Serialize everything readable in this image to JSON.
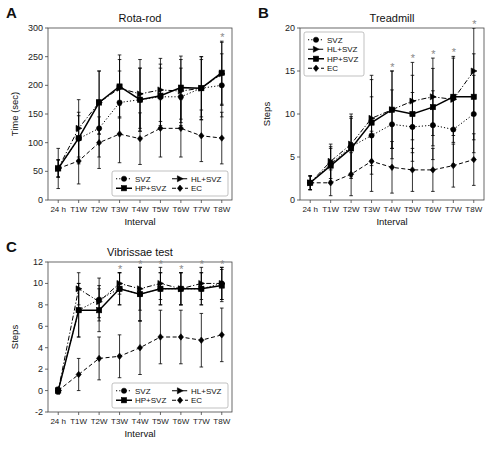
{
  "chart_data": [
    {
      "type": "line",
      "panel_label": "A",
      "title": "Rota-rod",
      "x_label": "Interval",
      "y_label": "Time (sec)",
      "categories": [
        "24 h",
        "T1W",
        "T2W",
        "T3W",
        "T4W",
        "T5W",
        "T6W",
        "T7W",
        "T8W"
      ],
      "series": [
        {
          "name": "SVZ",
          "color": "#000000",
          "marker": "circle",
          "line_style": "dotted",
          "values": [
            55,
            107,
            125,
            170,
            175,
            180,
            180,
            195,
            200
          ],
          "errors": [
            15,
            40,
            50,
            55,
            55,
            50,
            50,
            50,
            55
          ]
        },
        {
          "name": "HL+SVZ",
          "color": "#000000",
          "marker": "triangle-right",
          "line_style": "dashdot",
          "values": [
            55,
            125,
            170,
            195,
            185,
            192,
            190,
            195,
            220
          ],
          "errors": [
            15,
            50,
            55,
            50,
            60,
            55,
            55,
            55,
            55
          ]
        },
        {
          "name": "HP+SVZ",
          "color": "#000000",
          "marker": "square",
          "line_style": "solid",
          "values": [
            55,
            108,
            170,
            198,
            175,
            182,
            196,
            195,
            222
          ],
          "errors": [
            15,
            45,
            55,
            55,
            55,
            55,
            55,
            55,
            55
          ]
        },
        {
          "name": "EC",
          "color": "#000000",
          "marker": "diamond",
          "line_style": "dashed",
          "values": [
            55,
            68,
            100,
            115,
            107,
            125,
            125,
            112,
            108
          ],
          "errors": [
            35,
            40,
            45,
            50,
            45,
            50,
            50,
            45,
            45
          ]
        }
      ],
      "ylim": [
        0,
        300
      ],
      "yticks": [
        0,
        50,
        100,
        150,
        200,
        250,
        300
      ],
      "grid": false,
      "legend": "lower right",
      "annotations": [
        {
          "text": "*",
          "x": "T8W",
          "color": "#888888"
        }
      ]
    },
    {
      "type": "line",
      "panel_label": "B",
      "title": "Treadmill",
      "x_label": "Interval",
      "y_label": "Steps",
      "categories": [
        "24 h",
        "T1W",
        "T2W",
        "T3W",
        "T4W",
        "T5W",
        "T6W",
        "T7W",
        "T8W"
      ],
      "series": [
        {
          "name": "SVZ",
          "color": "#000000",
          "marker": "circle",
          "line_style": "dotted",
          "values": [
            2.0,
            4.2,
            6.2,
            7.5,
            8.8,
            8.5,
            8.7,
            8.2,
            10.0
          ],
          "errors": [
            0.8,
            2.0,
            3.5,
            4.5,
            4.0,
            4.0,
            4.0,
            4.0,
            4.5
          ]
        },
        {
          "name": "HL+SVZ",
          "color": "#000000",
          "marker": "triangle-right",
          "line_style": "dashdot",
          "values": [
            2.0,
            4.5,
            6.5,
            9.5,
            10.5,
            11.5,
            12.0,
            11.7,
            15.0
          ],
          "errors": [
            0.8,
            2.0,
            3.5,
            5.0,
            4.5,
            4.5,
            4.5,
            5.0,
            5.0
          ]
        },
        {
          "name": "HP+SVZ",
          "color": "#000000",
          "marker": "square",
          "line_style": "solid",
          "values": [
            2.0,
            4.0,
            6.0,
            9.0,
            10.5,
            10.0,
            10.8,
            12.0,
            12.0
          ],
          "errors": [
            0.8,
            2.0,
            3.5,
            5.0,
            4.5,
            4.5,
            4.5,
            4.5,
            5.0
          ]
        },
        {
          "name": "EC",
          "color": "#000000",
          "marker": "diamond",
          "line_style": "dashed",
          "values": [
            2.0,
            2.0,
            3.0,
            4.5,
            3.8,
            3.5,
            3.5,
            4.0,
            4.7
          ],
          "errors": [
            0.8,
            1.5,
            2.5,
            3.5,
            3.0,
            2.5,
            2.5,
            2.5,
            3.0
          ]
        }
      ],
      "ylim": [
        0,
        20
      ],
      "yticks": [
        0,
        5,
        10,
        15,
        20
      ],
      "grid": false,
      "legend": "upper left",
      "annotations": [
        {
          "text": "*",
          "x": "T4W",
          "color": "#888888"
        },
        {
          "text": "*",
          "x": "T5W",
          "color": "#888888"
        },
        {
          "text": "*",
          "x": "T6W",
          "color": "#888888"
        },
        {
          "text": "*",
          "x": "T7W",
          "color": "#888888"
        },
        {
          "text": "*",
          "x": "T8W",
          "color": "#888888"
        }
      ]
    },
    {
      "type": "line",
      "panel_label": "C",
      "title": "Vibrissae test",
      "x_label": "Interval",
      "y_label": "Steps",
      "categories": [
        "24 h",
        "T1W",
        "T2W",
        "T3W",
        "T4W",
        "T5W",
        "T6W",
        "T7W",
        "T8W"
      ],
      "series": [
        {
          "name": "SVZ",
          "color": "#000000",
          "marker": "circle",
          "line_style": "dotted",
          "values": [
            0.0,
            7.5,
            8.5,
            9.5,
            9.0,
            9.5,
            9.5,
            9.5,
            10.0
          ],
          "errors": [
            0.3,
            2.5,
            2.0,
            1.5,
            2.5,
            1.5,
            1.5,
            1.5,
            1.5
          ]
        },
        {
          "name": "HL+SVZ",
          "color": "#000000",
          "marker": "triangle-right",
          "line_style": "dashdot",
          "values": [
            0.0,
            9.5,
            8.3,
            10.0,
            9.5,
            10.0,
            9.5,
            10.0,
            10.0
          ],
          "errors": [
            0.3,
            1.5,
            1.5,
            1.0,
            2.0,
            1.5,
            1.5,
            1.5,
            1.5
          ]
        },
        {
          "name": "HP+SVZ",
          "color": "#000000",
          "marker": "square",
          "line_style": "solid",
          "values": [
            0.0,
            7.5,
            7.5,
            9.5,
            9.0,
            9.5,
            9.5,
            9.5,
            9.8
          ],
          "errors": [
            0.3,
            2.5,
            2.0,
            1.5,
            2.5,
            1.5,
            1.5,
            1.5,
            1.5
          ]
        },
        {
          "name": "EC",
          "color": "#000000",
          "marker": "diamond",
          "line_style": "dashed",
          "values": [
            0.0,
            1.5,
            3.0,
            3.2,
            4.0,
            5.0,
            5.0,
            4.7,
            5.2
          ],
          "errors": [
            0.3,
            1.5,
            2.0,
            2.0,
            2.5,
            2.5,
            2.5,
            2.5,
            2.5
          ]
        }
      ],
      "ylim": [
        -2,
        12
      ],
      "yticks": [
        -2,
        0,
        2,
        4,
        6,
        8,
        10,
        12
      ],
      "grid": false,
      "legend": "lower right",
      "annotations": [
        {
          "text": "*",
          "x": "T3W",
          "color": "#888888"
        },
        {
          "text": "*",
          "x": "T4W",
          "color": "#888888"
        },
        {
          "text": "*",
          "x": "T5W",
          "color": "#888888"
        },
        {
          "text": "*",
          "x": "T6W",
          "color": "#888888"
        },
        {
          "text": "*",
          "x": "T7W",
          "color": "#888888"
        },
        {
          "text": "*",
          "x": "T8W",
          "color": "#888888"
        }
      ]
    }
  ]
}
